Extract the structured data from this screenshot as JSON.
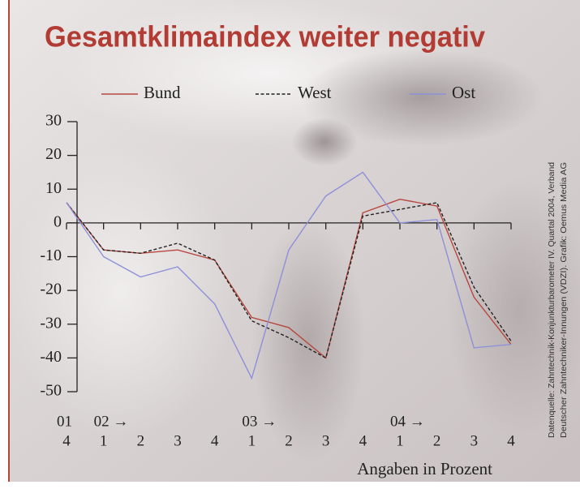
{
  "chart_data": {
    "type": "line",
    "title": "Gesamtklimaindex weiter negativ",
    "x_label": "Angaben in Prozent",
    "source": [
      "Datenquelle: Zahntechnik-Konjunkturbarometer IV. Quartal 2004, Verband",
      "Deutscher Zahntechniker-Innungen (VDZI). Grafik: Oemus Media AG"
    ],
    "category_groups": [
      "01",
      "02 →",
      null,
      null,
      null,
      "03 →",
      null,
      null,
      null,
      "04 →",
      null,
      null,
      null
    ],
    "categories": [
      "4",
      "1",
      "2",
      "3",
      "4",
      "1",
      "2",
      "3",
      "4",
      "1",
      "2",
      "3",
      "4"
    ],
    "series": [
      {
        "name": "Bund",
        "color": "#b8473f",
        "dash": false,
        "values": [
          6,
          -8,
          -9,
          -8,
          -11,
          -28,
          -31,
          -40,
          3,
          7,
          5,
          -22,
          -36
        ]
      },
      {
        "name": "West",
        "color": "#222222",
        "dash": true,
        "values": [
          6,
          -8,
          -9,
          -6,
          -11,
          -29,
          -34,
          -40,
          2,
          4,
          6,
          -19,
          -35
        ]
      },
      {
        "name": "Ost",
        "color": "#8d90d8",
        "dash": false,
        "values": [
          6,
          -10,
          -16,
          -13,
          -24,
          -46,
          -8,
          8,
          15,
          0,
          1,
          -37,
          -36
        ]
      }
    ],
    "ylim": [
      -50,
      30
    ],
    "yticks": [
      -50,
      -40,
      -30,
      -20,
      -10,
      0,
      10,
      20,
      30
    ],
    "grid": false
  }
}
